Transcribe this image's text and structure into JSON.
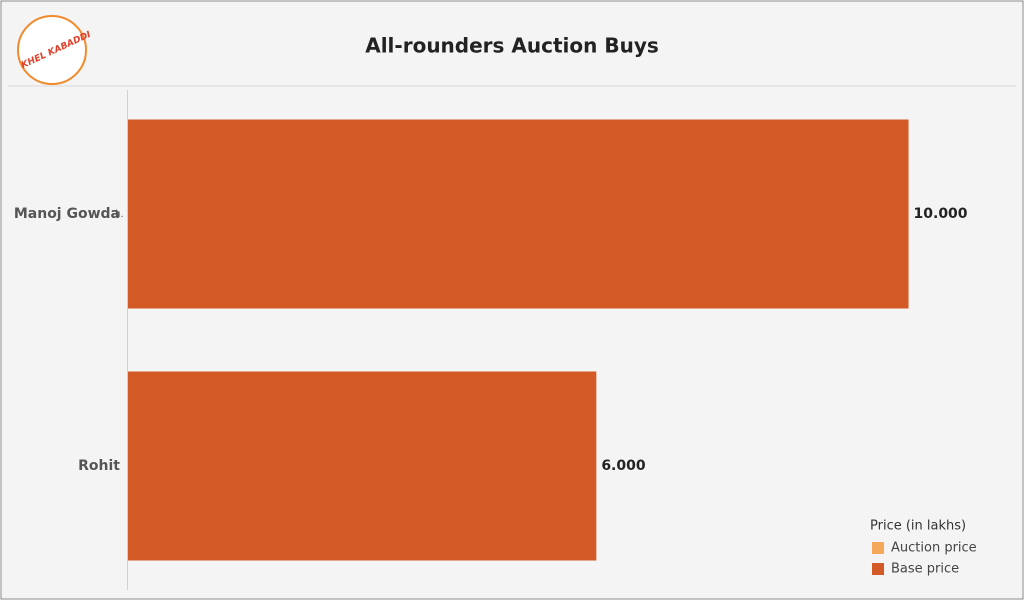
{
  "chart_data": {
    "type": "hbar",
    "title": "All-rounders Auction Buys",
    "logo_text": "KHEL KABADDI",
    "categories": [
      "Manoj Gowda",
      "Rohit"
    ],
    "legend_title": "Price (in lakhs)",
    "legend": "bottom-right",
    "series": [
      {
        "name": "Auction price",
        "color": "#f5a85a",
        "values": [
          null,
          null
        ]
      },
      {
        "name": "Base price",
        "color": "#d35a27",
        "values": [
          10,
          6
        ],
        "value_labels": [
          "10.000",
          "6.000"
        ]
      }
    ],
    "xlim": [
      0,
      11.3
    ]
  }
}
